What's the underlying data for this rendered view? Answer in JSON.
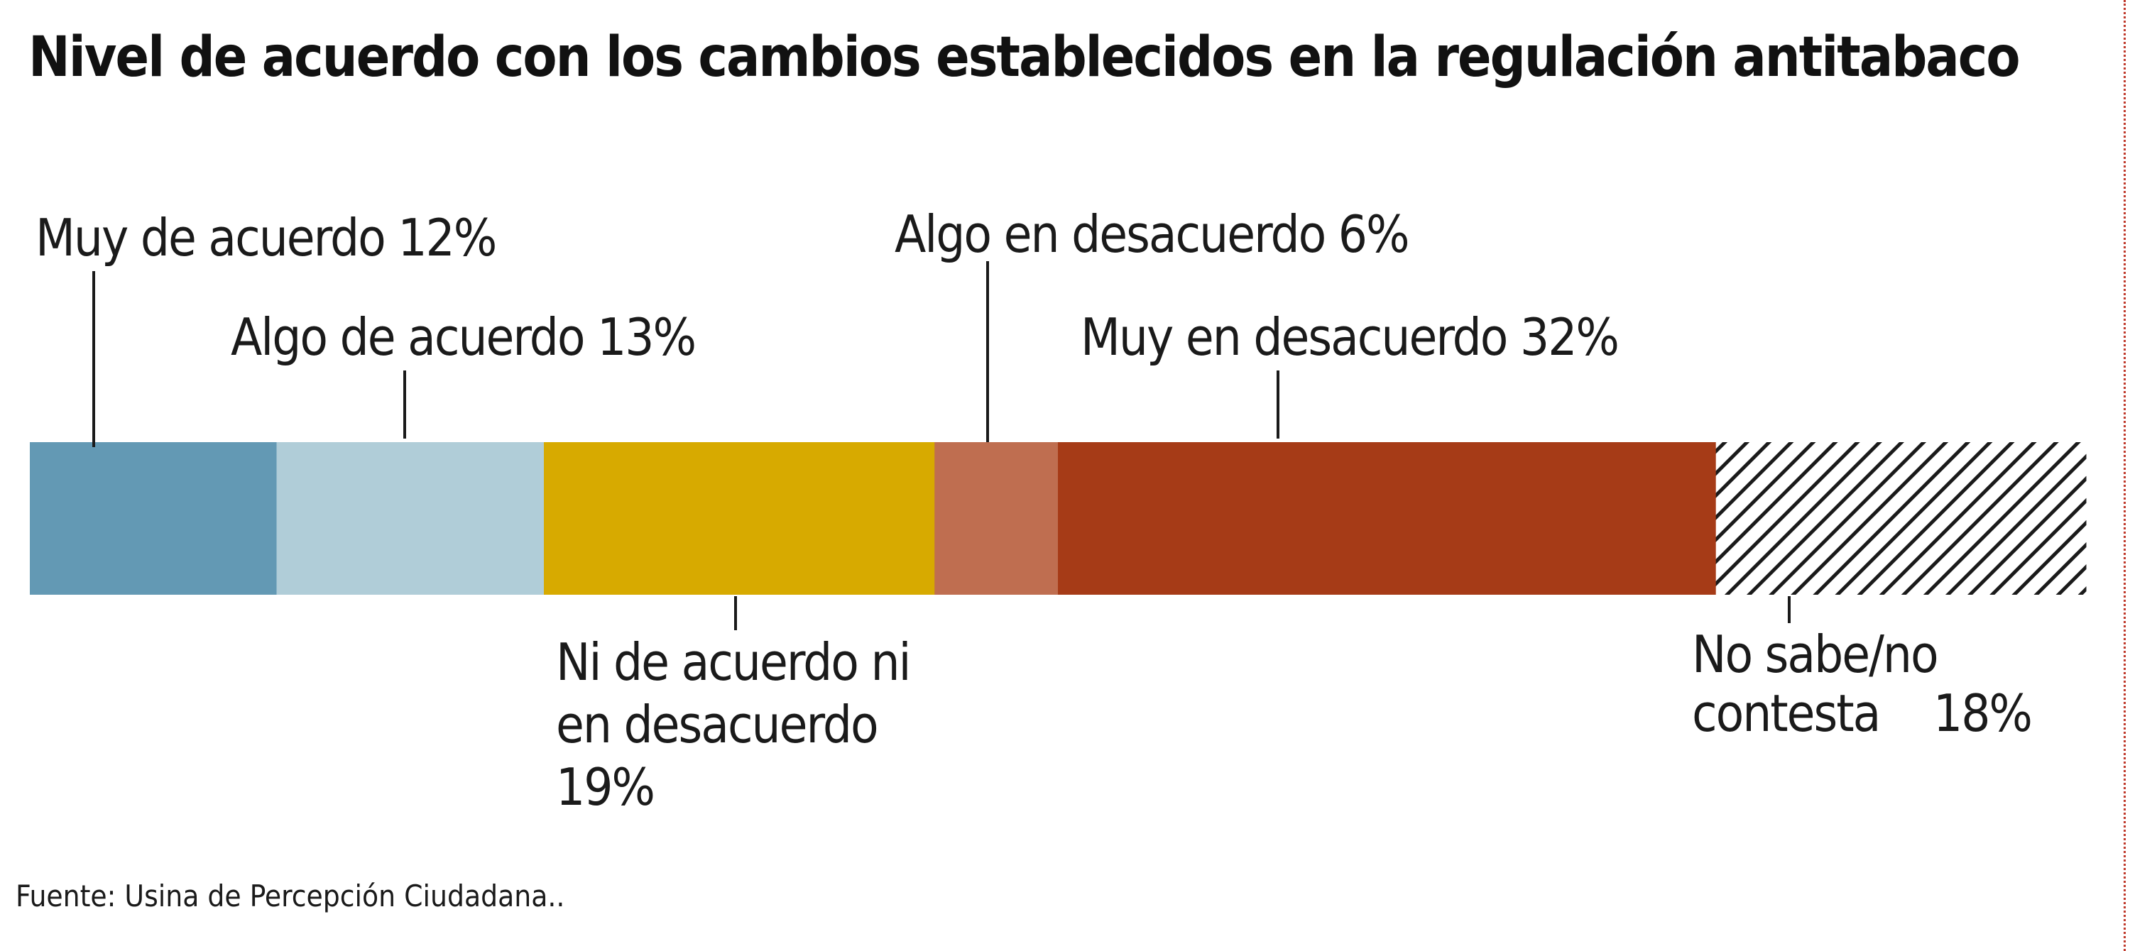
{
  "title": "Nivel de acuerdo con los cambios establecidos en la regulación antitabaco",
  "source": "Fuente: Usina de Percepción Ciudadana..",
  "chart_data": {
    "type": "bar",
    "orientation": "horizontal-stacked",
    "title": "Nivel de acuerdo con los cambios establecidos en la regulación antitabaco",
    "unit": "%",
    "segments": [
      {
        "label_lines": [
          "Muy de acuerdo 12%"
        ],
        "value": 12,
        "color": "#6399b4",
        "label_side": "above"
      },
      {
        "label_lines": [
          "Algo de acuerdo 13%"
        ],
        "value": 13,
        "color": "#b0cdd8",
        "label_side": "above"
      },
      {
        "label_lines": [
          "Ni de acuerdo ni",
          "en desacuerdo",
          "19%"
        ],
        "value": 19,
        "color": "#d7aa00",
        "label_side": "below"
      },
      {
        "label_lines": [
          "Algo en desacuerdo 6%"
        ],
        "value": 6,
        "color": "#bf6e50",
        "label_side": "above"
      },
      {
        "label_lines": [
          "Muy en desacuerdo 32%"
        ],
        "value": 32,
        "color": "#a63b17",
        "label_side": "above"
      },
      {
        "label_lines": [
          "No sabe/no",
          "contesta"
        ],
        "extra_label": "18%",
        "value": 18,
        "color": "#1a1a1a",
        "pattern": "diagonal-hatch",
        "label_side": "below"
      }
    ]
  }
}
